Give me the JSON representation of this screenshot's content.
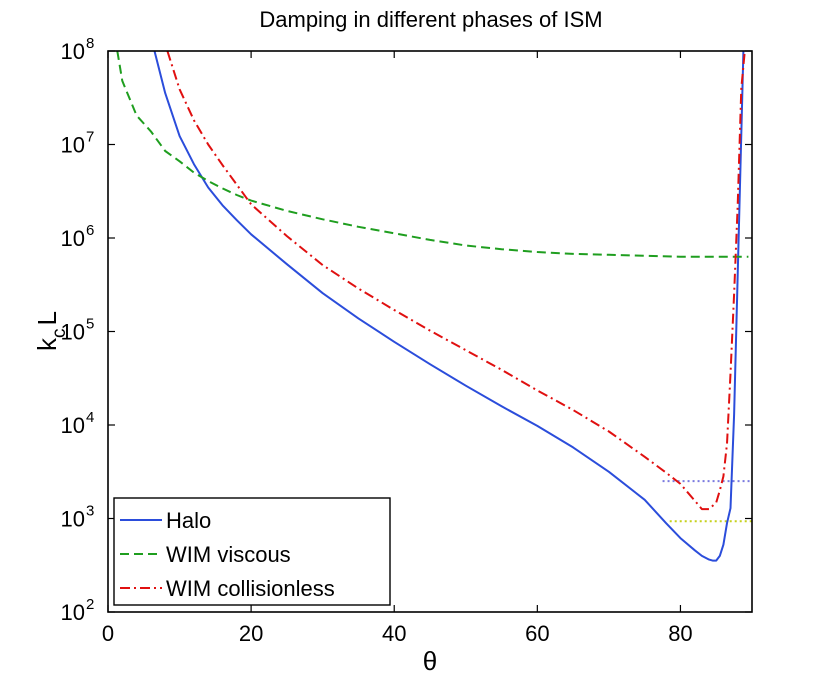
{
  "chart_data": {
    "type": "line",
    "title": "Damping in different phases of ISM",
    "xlabel": "θ",
    "ylabel": {
      "main": "k",
      "sub": "c",
      "tail": "L"
    },
    "xlim": [
      0,
      90
    ],
    "ylim_log10": [
      2,
      8
    ],
    "yscale": "log",
    "x_ticks": [
      0,
      20,
      40,
      60,
      80
    ],
    "x_tick_labels": [
      "0",
      "20",
      "40",
      "60",
      "80"
    ],
    "y_ticks": [
      {
        "value": 2,
        "base": "10",
        "exp": "2"
      },
      {
        "value": 3,
        "base": "10",
        "exp": "3"
      },
      {
        "value": 4,
        "base": "10",
        "exp": "4"
      },
      {
        "value": 5,
        "base": "10",
        "exp": "5"
      },
      {
        "value": 6,
        "base": "10",
        "exp": "6"
      },
      {
        "value": 7,
        "base": "10",
        "exp": "7"
      },
      {
        "value": 8,
        "base": "10",
        "exp": "8"
      }
    ],
    "legend_position": "bottom-left",
    "series": [
      {
        "name": "Halo",
        "color": "#2b4ddb",
        "style": "solid",
        "x": [
          6.5,
          8,
          10,
          12,
          14,
          16,
          18,
          20,
          25,
          30,
          35,
          40,
          45,
          50,
          55,
          60,
          65,
          70,
          75,
          78,
          80,
          82,
          83,
          84,
          84.5,
          85,
          85.5,
          86,
          86.5,
          87,
          87.5,
          88,
          88.5,
          88.8
        ],
        "log10_y": [
          8.0,
          7.55,
          7.09,
          6.79,
          6.54,
          6.35,
          6.19,
          6.04,
          5.72,
          5.41,
          5.14,
          4.89,
          4.65,
          4.42,
          4.2,
          3.99,
          3.76,
          3.5,
          3.2,
          2.95,
          2.79,
          2.66,
          2.6,
          2.56,
          2.55,
          2.55,
          2.6,
          2.72,
          2.95,
          3.11,
          4.11,
          5.61,
          7.11,
          8.0
        ]
      },
      {
        "name": "WIM viscous",
        "color": "#1f9e1f",
        "style": "dashed",
        "x": [
          1.3,
          2,
          4,
          6,
          8,
          10,
          12,
          14,
          16,
          18,
          20,
          25,
          30,
          35,
          40,
          45,
          50,
          55,
          60,
          65,
          70,
          75,
          80,
          85,
          89.5
        ],
        "log10_y": [
          8.0,
          7.68,
          7.31,
          7.14,
          6.93,
          6.82,
          6.7,
          6.61,
          6.53,
          6.46,
          6.4,
          6.29,
          6.2,
          6.12,
          6.05,
          5.98,
          5.92,
          5.88,
          5.85,
          5.83,
          5.82,
          5.81,
          5.8,
          5.8,
          5.8
        ]
      },
      {
        "name": "WIM collisionless",
        "color": "#e01010",
        "style": "dashdot",
        "x": [
          8.3,
          10,
          12,
          14,
          16,
          18,
          20,
          25,
          30,
          35,
          40,
          45,
          50,
          55,
          60,
          65,
          70,
          75,
          78,
          80,
          81,
          82,
          83,
          84,
          85,
          85.5,
          86,
          86.5,
          87,
          87.5,
          88,
          88.5,
          89
        ],
        "log10_y": [
          8.0,
          7.59,
          7.26,
          7.0,
          6.78,
          6.57,
          6.36,
          6.02,
          5.71,
          5.46,
          5.23,
          5.01,
          4.8,
          4.59,
          4.37,
          4.16,
          3.93,
          3.66,
          3.49,
          3.37,
          3.28,
          3.19,
          3.1,
          3.1,
          3.17,
          3.3,
          3.45,
          3.8,
          4.55,
          5.4,
          6.35,
          7.6,
          8.0
        ]
      }
    ],
    "reference_lines": [
      {
        "color": "#7a7adf",
        "style": "dotted",
        "x_start": 77.5,
        "x_end": 90,
        "log10_y": 3.4
      },
      {
        "color": "#c6d11a",
        "style": "dotted",
        "x_start": 78.5,
        "x_end": 90,
        "log10_y": 2.97
      }
    ]
  }
}
